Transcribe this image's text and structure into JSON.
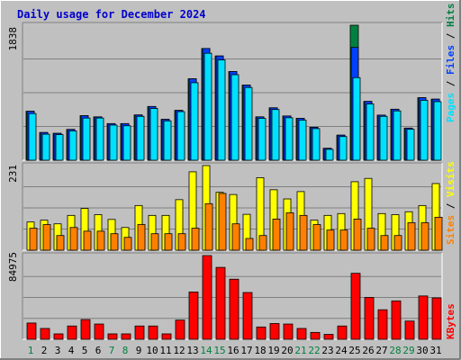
{
  "title": "Daily usage for December 2024",
  "colors": {
    "background": "#c0c0c0",
    "hits": "#008040",
    "files": "#0040ff",
    "pages": "#00e0ff",
    "visits": "#ffff00",
    "sites": "#ff8000",
    "kbytes": "#ff0000",
    "weekday_label": "#000000",
    "weekend_label": "#008040",
    "slash": "#000000"
  },
  "chart_data": [
    {
      "type": "bar",
      "panel": "hits-files-pages",
      "ymax_label": "1838",
      "ylim": [
        0,
        1838
      ],
      "categories": [
        "1",
        "2",
        "3",
        "4",
        "5",
        "6",
        "7",
        "8",
        "9",
        "10",
        "11",
        "12",
        "13",
        "14",
        "15",
        "16",
        "17",
        "18",
        "19",
        "20",
        "21",
        "22",
        "23",
        "24",
        "25",
        "26",
        "27",
        "28",
        "29",
        "30",
        "31"
      ],
      "series": [
        {
          "name": "Hits",
          "values": [
            666,
            377,
            366,
            419,
            606,
            590,
            498,
            498,
            616,
            731,
            556,
            678,
            1108,
            1521,
            1419,
            1207,
            1022,
            590,
            713,
            602,
            570,
            448,
            162,
            341,
            1838,
            800,
            614,
            694,
            437,
            851,
            831
          ]
        },
        {
          "name": "Files",
          "values": [
            666,
            377,
            366,
            419,
            606,
            590,
            498,
            498,
            616,
            731,
            556,
            678,
            1108,
            1521,
            1419,
            1207,
            1022,
            590,
            713,
            602,
            570,
            448,
            162,
            341,
            1536,
            800,
            614,
            694,
            437,
            851,
            831
          ]
        },
        {
          "name": "Pages",
          "values": [
            635,
            354,
            349,
            399,
            574,
            574,
            478,
            469,
            597,
            705,
            535,
            661,
            1055,
            1456,
            1365,
            1164,
            990,
            570,
            690,
            578,
            545,
            430,
            148,
            322,
            1124,
            766,
            597,
            671,
            421,
            816,
            797
          ]
        }
      ]
    },
    {
      "type": "bar",
      "panel": "sites-visits",
      "ymax_label": "231",
      "ylim": [
        0,
        231
      ],
      "categories": [
        "1",
        "2",
        "3",
        "4",
        "5",
        "6",
        "7",
        "8",
        "9",
        "10",
        "11",
        "12",
        "13",
        "14",
        "15",
        "16",
        "17",
        "18",
        "19",
        "20",
        "21",
        "22",
        "23",
        "24",
        "25",
        "26",
        "27",
        "28",
        "29",
        "30",
        "31"
      ],
      "series": [
        {
          "name": "Visits",
          "values": [
            77,
            82,
            72,
            95,
            114,
            97,
            84,
            62,
            122,
            95,
            95,
            138,
            214,
            231,
            158,
            152,
            98,
            198,
            165,
            140,
            160,
            82,
            95,
            100,
            187,
            196,
            100,
            97,
            105,
            122,
            182
          ]
        },
        {
          "name": "Sites",
          "values": [
            60,
            70,
            40,
            62,
            52,
            52,
            45,
            35,
            70,
            45,
            45,
            45,
            60,
            127,
            155,
            72,
            32,
            40,
            85,
            102,
            95,
            70,
            55,
            55,
            85,
            60,
            40,
            40,
            75,
            75,
            90
          ]
        }
      ]
    },
    {
      "type": "bar",
      "panel": "kbytes",
      "ymax_label": "84975",
      "ylim": [
        0,
        84975
      ],
      "categories": [
        "1",
        "2",
        "3",
        "4",
        "5",
        "6",
        "7",
        "8",
        "9",
        "10",
        "11",
        "12",
        "13",
        "14",
        "15",
        "16",
        "17",
        "18",
        "19",
        "20",
        "21",
        "22",
        "23",
        "24",
        "25",
        "26",
        "27",
        "28",
        "29",
        "30",
        "31"
      ],
      "series": [
        {
          "name": "KBytes",
          "values": [
            16500,
            11000,
            5500,
            13500,
            20000,
            15500,
            5500,
            5500,
            13500,
            13500,
            5500,
            19500,
            48000,
            84975,
            73000,
            61000,
            47500,
            12500,
            16000,
            15500,
            11000,
            7000,
            5000,
            13500,
            67000,
            42500,
            30000,
            39000,
            18500,
            44000,
            42000
          ]
        }
      ]
    }
  ]
}
